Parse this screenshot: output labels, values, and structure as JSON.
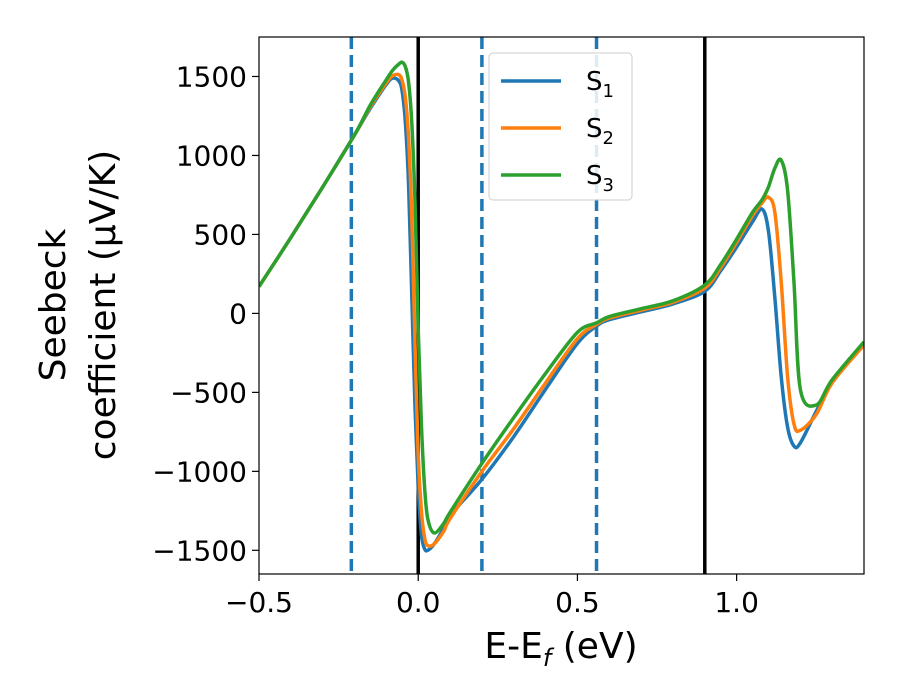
{
  "chart_data": {
    "type": "line",
    "xlabel": "E-E_f (eV)",
    "xlabel_parts": {
      "base": "E-E",
      "sub": "f",
      "rest": " (eV)"
    },
    "ylabel_line1": "Seebeck",
    "ylabel_line2": "coefficient  (μV/K)",
    "xlim": [
      -0.5,
      1.4
    ],
    "ylim": [
      -1650,
      1750
    ],
    "x_ticks": [
      -0.5,
      0.0,
      0.5,
      1.0
    ],
    "x_tick_labels": [
      "−0.5",
      "0.0",
      "0.5",
      "1.0"
    ],
    "y_ticks": [
      -1500,
      -1000,
      -500,
      0,
      500,
      1000,
      1500
    ],
    "y_tick_labels": [
      "−1500",
      "−1000",
      "−500",
      "0",
      "500",
      "1000",
      "1500"
    ],
    "grid": false,
    "legend_position": "top-center",
    "vlines": [
      {
        "x": -0.21,
        "style": "dashed",
        "color": "#1f77b4"
      },
      {
        "x": 0.0,
        "style": "solid",
        "color": "#000000"
      },
      {
        "x": 0.2,
        "style": "dashed",
        "color": "#1f77b4"
      },
      {
        "x": 0.56,
        "style": "dashed",
        "color": "#1f77b4"
      },
      {
        "x": 0.9,
        "style": "solid",
        "color": "#000000"
      }
    ],
    "series": [
      {
        "name": "S1",
        "label_base": "S",
        "label_sub": "1",
        "color": "#1f77b4",
        "x": [
          -0.5,
          -0.4,
          -0.3,
          -0.2,
          -0.15,
          -0.1,
          -0.08,
          -0.06,
          -0.05,
          -0.04,
          -0.03,
          -0.02,
          -0.01,
          0.0,
          0.01,
          0.02,
          0.03,
          0.05,
          0.08,
          0.1,
          0.2,
          0.3,
          0.4,
          0.5,
          0.56,
          0.6,
          0.7,
          0.8,
          0.9,
          0.95,
          1.0,
          1.05,
          1.08,
          1.1,
          1.12,
          1.14,
          1.16,
          1.18,
          1.2,
          1.25,
          1.3,
          1.4
        ],
        "y": [
          170,
          480,
          800,
          1130,
          1300,
          1450,
          1490,
          1470,
          1400,
          1200,
          800,
          100,
          -600,
          -1100,
          -1400,
          -1490,
          -1500,
          -1460,
          -1360,
          -1280,
          -1050,
          -780,
          -480,
          -190,
          -80,
          -40,
          10,
          60,
          140,
          270,
          420,
          580,
          660,
          520,
          100,
          -400,
          -720,
          -840,
          -820,
          -620,
          -430,
          -200
        ]
      },
      {
        "name": "S2",
        "label_base": "S",
        "label_sub": "2",
        "color": "#ff7f0e",
        "x": [
          -0.5,
          -0.4,
          -0.3,
          -0.2,
          -0.15,
          -0.1,
          -0.08,
          -0.06,
          -0.05,
          -0.04,
          -0.03,
          -0.02,
          -0.01,
          0.0,
          0.01,
          0.02,
          0.03,
          0.05,
          0.08,
          0.1,
          0.2,
          0.3,
          0.4,
          0.5,
          0.56,
          0.6,
          0.7,
          0.8,
          0.9,
          0.95,
          1.0,
          1.05,
          1.08,
          1.1,
          1.12,
          1.14,
          1.16,
          1.18,
          1.2,
          1.25,
          1.3,
          1.4
        ],
        "y": [
          170,
          480,
          800,
          1130,
          1310,
          1460,
          1505,
          1510,
          1470,
          1360,
          1100,
          600,
          -200,
          -900,
          -1250,
          -1420,
          -1470,
          -1460,
          -1380,
          -1300,
          -1000,
          -730,
          -440,
          -160,
          -70,
          -30,
          20,
          70,
          160,
          290,
          450,
          620,
          700,
          735,
          640,
          200,
          -400,
          -700,
          -740,
          -640,
          -440,
          -200
        ]
      },
      {
        "name": "S3",
        "label_base": "S",
        "label_sub": "3",
        "color": "#2ca02c",
        "x": [
          -0.5,
          -0.4,
          -0.3,
          -0.2,
          -0.15,
          -0.1,
          -0.08,
          -0.06,
          -0.05,
          -0.04,
          -0.03,
          -0.02,
          -0.01,
          0.0,
          0.01,
          0.02,
          0.03,
          0.05,
          0.08,
          0.1,
          0.2,
          0.3,
          0.4,
          0.5,
          0.56,
          0.6,
          0.7,
          0.8,
          0.9,
          0.95,
          1.0,
          1.05,
          1.08,
          1.1,
          1.12,
          1.14,
          1.16,
          1.18,
          1.2,
          1.25,
          1.3,
          1.4
        ],
        "y": [
          170,
          480,
          800,
          1130,
          1320,
          1480,
          1540,
          1580,
          1590,
          1560,
          1460,
          1200,
          700,
          -100,
          -700,
          -1100,
          -1300,
          -1390,
          -1330,
          -1260,
          -950,
          -660,
          -380,
          -120,
          -60,
          -20,
          30,
          80,
          180,
          310,
          470,
          640,
          720,
          800,
          920,
          970,
          780,
          200,
          -480,
          -580,
          -420,
          -180
        ]
      }
    ]
  }
}
